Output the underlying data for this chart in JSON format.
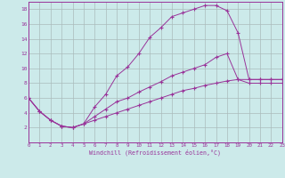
{
  "background_color": "#cceaea",
  "grid_color": "#aabbbb",
  "line_color": "#993399",
  "xlabel": "Windchill (Refroidissement éolien,°C)",
  "xlim": [
    0,
    23
  ],
  "ylim": [
    0,
    19
  ],
  "xticks": [
    0,
    1,
    2,
    3,
    4,
    5,
    6,
    7,
    8,
    9,
    10,
    11,
    12,
    13,
    14,
    15,
    16,
    17,
    18,
    19,
    20,
    21,
    22,
    23
  ],
  "yticks": [
    2,
    4,
    6,
    8,
    10,
    12,
    14,
    16,
    18
  ],
  "line1_x": [
    0,
    1,
    2,
    3,
    4,
    5,
    6,
    7,
    8,
    9,
    10,
    11,
    12,
    13,
    14,
    15,
    16,
    17,
    18,
    19,
    20,
    21,
    22,
    23
  ],
  "line1_y": [
    6,
    4.2,
    3.0,
    2.2,
    2.0,
    2.5,
    4.8,
    6.5,
    9.0,
    10.2,
    12.0,
    14.2,
    15.5,
    17.0,
    17.5,
    18.0,
    18.5,
    18.5,
    17.8,
    14.8,
    8.5,
    8.5,
    8.5,
    8.5
  ],
  "line2_x": [
    0,
    1,
    2,
    3,
    4,
    5,
    6,
    7,
    8,
    9,
    10,
    11,
    12,
    13,
    14,
    15,
    16,
    17,
    18,
    19,
    20,
    21,
    22,
    23
  ],
  "line2_y": [
    6,
    4.2,
    3.0,
    2.2,
    2.0,
    2.5,
    3.5,
    4.5,
    5.5,
    6.0,
    6.8,
    7.5,
    8.2,
    9.0,
    9.5,
    10.0,
    10.5,
    11.5,
    12.0,
    8.5,
    8.5,
    8.5,
    8.5,
    8.5
  ],
  "line3_x": [
    0,
    1,
    2,
    3,
    4,
    5,
    6,
    7,
    8,
    9,
    10,
    11,
    12,
    13,
    14,
    15,
    16,
    17,
    18,
    19,
    20,
    21,
    22,
    23
  ],
  "line3_y": [
    6,
    4.2,
    3.0,
    2.2,
    2.0,
    2.5,
    3.0,
    3.5,
    4.0,
    4.5,
    5.0,
    5.5,
    6.0,
    6.5,
    7.0,
    7.3,
    7.7,
    8.0,
    8.3,
    8.5,
    8.0,
    8.0,
    8.0,
    8.0
  ]
}
